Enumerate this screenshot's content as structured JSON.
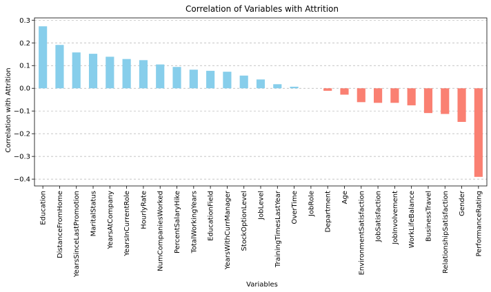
{
  "chart_data": {
    "type": "bar",
    "title": "Correlation of Variables with Attrition",
    "xlabel": "Variables",
    "ylabel": "Correlation with Attrition",
    "ylim": [
      -0.43,
      0.31
    ],
    "yticks": [
      0.3,
      0.2,
      0.1,
      0.0,
      -0.1,
      -0.2,
      -0.3,
      -0.4
    ],
    "ytick_labels": [
      "0.3",
      "0.2",
      "0.1",
      "0.0",
      "−0.1",
      "−0.2",
      "−0.3",
      "−0.4"
    ],
    "grid": "horizontal dashed",
    "colors": {
      "positive": "#87ceeb",
      "negative": "#fa8072"
    },
    "categories": [
      "Education",
      "DistanceFromHome",
      "YearsSinceLastPromotion",
      "MaritalStatus",
      "YearsAtCompany",
      "YearsInCurrentRole",
      "HourlyRate",
      "NumCompaniesWorked",
      "PercentSalaryHike",
      "TotalWorkingYears",
      "EducationField",
      "YearsWithCurrManager",
      "StockOptionLevel",
      "JobLevel",
      "TrainingTimesLastYear",
      "OverTime",
      "JobRole",
      "Department",
      "Age",
      "EnvironmentSatisfaction",
      "JobSatisfaction",
      "JobInvolvement",
      "WorkLifeBalance",
      "BusinessTravel",
      "RelationshipSatisfaction",
      "Gender",
      "PerformanceRating"
    ],
    "values": [
      0.273,
      0.191,
      0.158,
      0.152,
      0.139,
      0.129,
      0.124,
      0.105,
      0.094,
      0.082,
      0.077,
      0.073,
      0.056,
      0.039,
      0.018,
      0.007,
      0.0,
      -0.011,
      -0.028,
      -0.061,
      -0.064,
      -0.064,
      -0.075,
      -0.109,
      -0.113,
      -0.148,
      -0.39
    ]
  }
}
